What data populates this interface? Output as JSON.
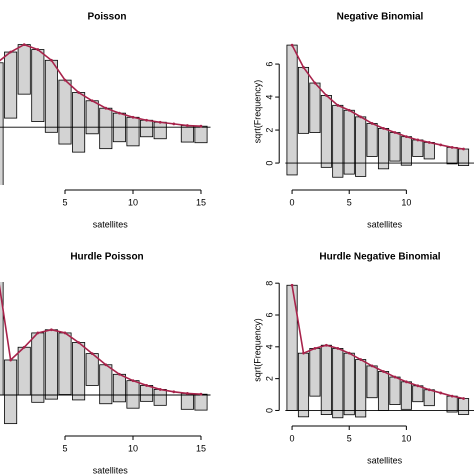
{
  "chart_data": [
    {
      "type": "rootogram",
      "title": "Poisson",
      "xlabel": "satellites",
      "x": [
        0,
        1,
        2,
        3,
        4,
        5,
        6,
        7,
        8,
        9,
        10,
        11,
        12,
        13,
        14,
        15
      ],
      "observed": [
        7.87,
        4,
        3,
        4.36,
        4.36,
        3.87,
        3.61,
        2,
        2.45,
        1.73,
        1.73,
        1,
        1,
        0,
        1,
        1
      ],
      "expected": [
        3.9,
        4.55,
        5.0,
        4.7,
        4.05,
        2.85,
        2.1,
        1.6,
        1.15,
        0.85,
        0.6,
        0.42,
        0.3,
        0.2,
        0.1,
        0.06
      ],
      "xlim": [
        -0.7,
        15.7
      ],
      "ylim": [
        -3.5,
        5.4
      ],
      "xticks": [
        5,
        10,
        15
      ],
      "color": "#a8234b",
      "bar_color": "#d3d3d3"
    },
    {
      "type": "rootogram",
      "title": "Negative Binomial",
      "xlabel": "satellites",
      "ylabel": "sqrt(Frequency)",
      "x": [
        0,
        1,
        2,
        3,
        4,
        5,
        6,
        7,
        8,
        9,
        10,
        11,
        12,
        13,
        14,
        15
      ],
      "observed": [
        7.87,
        4,
        3,
        4.36,
        4.36,
        3.87,
        3.61,
        2,
        2.45,
        1.73,
        1.73,
        1,
        1,
        0,
        1,
        1
      ],
      "expected": [
        7.15,
        5.8,
        4.85,
        4.1,
        3.5,
        3.2,
        2.8,
        2.4,
        2.1,
        1.85,
        1.6,
        1.4,
        1.25,
        1.1,
        0.95,
        0.85
      ],
      "xlim": [
        -0.6,
        15.95
      ],
      "ylim": [
        -1.33,
        7.58
      ],
      "xticks": [
        0,
        5,
        10
      ],
      "yticks": [
        0,
        2,
        4,
        6
      ],
      "color": "#a8234b",
      "bar_color": "#d3d3d3"
    },
    {
      "type": "rootogram",
      "title": "Hurdle Poisson",
      "xlabel": "satellites",
      "x": [
        0,
        1,
        2,
        3,
        4,
        5,
        6,
        7,
        8,
        9,
        10,
        11,
        12,
        13,
        14,
        15
      ],
      "observed": [
        7.87,
        4,
        3,
        4.36,
        4.36,
        3.87,
        3.61,
        2,
        2.45,
        1.73,
        1.73,
        1,
        1,
        0,
        1,
        1
      ],
      "expected": [
        7.87,
        2.2,
        3.0,
        3.9,
        4.1,
        3.9,
        3.3,
        2.6,
        1.9,
        1.3,
        0.9,
        0.6,
        0.35,
        0.2,
        0.1,
        0.05
      ],
      "xlim": [
        -0.7,
        15.7
      ],
      "ylim": [
        -2.2,
        7.1
      ],
      "xticks": [
        5,
        10,
        15
      ],
      "color": "#a8234b",
      "bar_color": "#d3d3d3"
    },
    {
      "type": "rootogram",
      "title": "Hurdle Negative Binomial",
      "xlabel": "satellites",
      "ylabel": "sqrt(Frequency)",
      "x": [
        0,
        1,
        2,
        3,
        4,
        5,
        6,
        7,
        8,
        9,
        10,
        11,
        12,
        13,
        14,
        15
      ],
      "observed": [
        7.87,
        4,
        3,
        4.36,
        4.36,
        3.87,
        3.61,
        2,
        2.45,
        1.73,
        1.73,
        1,
        1,
        0,
        1,
        1
      ],
      "expected": [
        7.87,
        3.6,
        3.9,
        4.1,
        3.9,
        3.6,
        3.2,
        2.8,
        2.45,
        2.1,
        1.8,
        1.55,
        1.3,
        1.1,
        0.9,
        0.75
      ],
      "xlim": [
        -0.6,
        15.95
      ],
      "ylim": [
        -0.6,
        8.2
      ],
      "xticks": [
        0,
        5,
        10
      ],
      "yticks": [
        0,
        2,
        4,
        6,
        8
      ],
      "color": "#a8234b",
      "bar_color": "#d3d3d3"
    }
  ]
}
